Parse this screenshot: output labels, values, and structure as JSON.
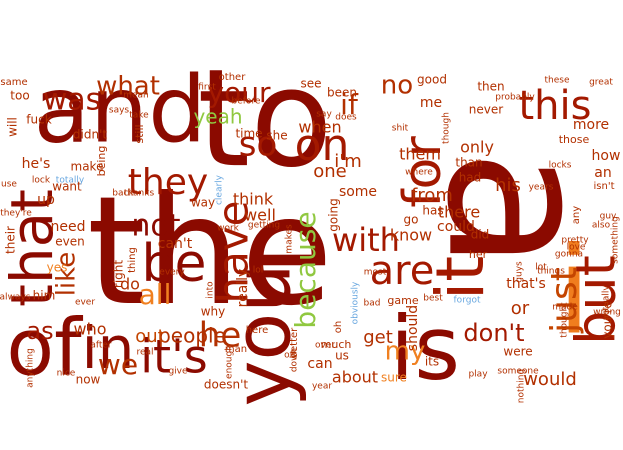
{
  "palette": {
    "background": "#ffffff",
    "c1": "#8b0a00",
    "c2": "#a31900",
    "c3": "#b23000",
    "c4": "#c44500",
    "c5": "#d9621a",
    "c6": "#f08020",
    "c7": "#e89a50",
    "c8": "#90c840",
    "c9": "#6aa8e0"
  },
  "words": [
    {
      "text": "the",
      "size": 150,
      "color": "#8b0a00",
      "rotate": 0
    },
    {
      "text": "a",
      "size": 200,
      "color": "#8b0a00",
      "rotate": 90
    },
    {
      "text": "to",
      "size": 135,
      "color": "#8b0a00",
      "rotate": 0
    },
    {
      "text": "and",
      "size": 92,
      "color": "#8b0a00",
      "rotate": 0
    },
    {
      "text": "i",
      "size": 120,
      "color": "#f07d1e",
      "rotate": 0
    },
    {
      "text": "of",
      "size": 78,
      "color": "#8b0a00",
      "rotate": 0
    },
    {
      "text": "you",
      "size": 78,
      "color": "#8b0a00",
      "rotate": -90
    },
    {
      "text": "is",
      "size": 88,
      "color": "#8b0a00",
      "rotate": 0
    },
    {
      "text": "that",
      "size": 58,
      "color": "#8b0a00",
      "rotate": -90
    },
    {
      "text": "it",
      "size": 66,
      "color": "#a31900",
      "rotate": -90
    },
    {
      "text": "in",
      "size": 58,
      "color": "#8b0a00",
      "rotate": 0
    },
    {
      "text": "but",
      "size": 54,
      "color": "#a31900",
      "rotate": -90
    },
    {
      "text": "for",
      "size": 52,
      "color": "#a31900",
      "rotate": -90
    },
    {
      "text": "have",
      "size": 42,
      "color": "#a31900",
      "rotate": -90
    },
    {
      "text": "be",
      "size": 52,
      "color": "#8b0a00",
      "rotate": 0
    },
    {
      "text": "it's",
      "size": 46,
      "color": "#8b0a00",
      "rotate": 0
    },
    {
      "text": "on",
      "size": 44,
      "color": "#a31900",
      "rotate": 0
    },
    {
      "text": "this",
      "size": 40,
      "color": "#a31900",
      "rotate": 0
    },
    {
      "text": "just",
      "size": 36,
      "color": "#c44500",
      "rotate": -90
    },
    {
      "text": "they",
      "size": 36,
      "color": "#a31900",
      "rotate": 0
    },
    {
      "text": "was",
      "size": 30,
      "color": "#a31900",
      "rotate": 0
    },
    {
      "text": "are",
      "size": 40,
      "color": "#a31900",
      "rotate": 0
    },
    {
      "text": "with",
      "size": 32,
      "color": "#a31900",
      "rotate": 0
    },
    {
      "text": "not",
      "size": 30,
      "color": "#8b0a00",
      "rotate": 0
    },
    {
      "text": "so",
      "size": 34,
      "color": "#a31900",
      "rotate": 0
    },
    {
      "text": "he",
      "size": 34,
      "color": "#b23000",
      "rotate": 0
    },
    {
      "text": "we",
      "size": 28,
      "color": "#b23000",
      "rotate": 0
    },
    {
      "text": "your",
      "size": 28,
      "color": "#a31900",
      "rotate": 0
    },
    {
      "text": "what",
      "size": 26,
      "color": "#b23000",
      "rotate": 0
    },
    {
      "text": "because",
      "size": 28,
      "color": "#90c840",
      "rotate": -90
    },
    {
      "text": "like",
      "size": 26,
      "color": "#b23000",
      "rotate": -90
    },
    {
      "text": "all",
      "size": 28,
      "color": "#f08020",
      "rotate": 0
    },
    {
      "text": "if",
      "size": 28,
      "color": "#b23000",
      "rotate": 0
    },
    {
      "text": "no",
      "size": 26,
      "color": "#b23000",
      "rotate": 0
    },
    {
      "text": "as",
      "size": 24,
      "color": "#a31900",
      "rotate": 0
    },
    {
      "text": "my",
      "size": 26,
      "color": "#f08020",
      "rotate": 0
    },
    {
      "text": "don't",
      "size": 24,
      "color": "#a31900",
      "rotate": 0
    },
    {
      "text": "people",
      "size": 20,
      "color": "#b23000",
      "rotate": 0
    },
    {
      "text": "out",
      "size": 18,
      "color": "#c44500",
      "rotate": 0
    },
    {
      "text": "would",
      "size": 18,
      "color": "#b23000",
      "rotate": 0
    },
    {
      "text": "about",
      "size": 16,
      "color": "#b23000",
      "rotate": 0
    },
    {
      "text": "know",
      "size": 16,
      "color": "#b23000",
      "rotate": 0
    },
    {
      "text": "get",
      "size": 18,
      "color": "#b23000",
      "rotate": 0
    },
    {
      "text": "yeah",
      "size": 20,
      "color": "#90c840",
      "rotate": 0
    },
    {
      "text": "one",
      "size": 18,
      "color": "#b23000",
      "rotate": 0
    },
    {
      "text": "from",
      "size": 18,
      "color": "#b23000",
      "rotate": 0
    },
    {
      "text": "his",
      "size": 18,
      "color": "#b23000",
      "rotate": 0
    },
    {
      "text": "only",
      "size": 16,
      "color": "#b23000",
      "rotate": 0
    },
    {
      "text": "them",
      "size": 16,
      "color": "#b23000",
      "rotate": 0
    },
    {
      "text": "i'm",
      "size": 18,
      "color": "#b23000",
      "rotate": 0
    },
    {
      "text": "when",
      "size": 16,
      "color": "#b23000",
      "rotate": 0
    },
    {
      "text": "think",
      "size": 16,
      "color": "#b23000",
      "rotate": 0
    },
    {
      "text": "well",
      "size": 16,
      "color": "#b23000",
      "rotate": 0
    },
    {
      "text": "who",
      "size": 16,
      "color": "#b23000",
      "rotate": 0
    },
    {
      "text": "do",
      "size": 16,
      "color": "#b23000",
      "rotate": 0
    },
    {
      "text": "or",
      "size": 18,
      "color": "#b23000",
      "rotate": 0
    },
    {
      "text": "there",
      "size": 16,
      "color": "#b23000",
      "rotate": 0
    },
    {
      "text": "more",
      "size": 14,
      "color": "#b23000",
      "rotate": 0
    },
    {
      "text": "how",
      "size": 14,
      "color": "#b23000",
      "rotate": 0
    },
    {
      "text": "an",
      "size": 14,
      "color": "#b23000",
      "rotate": 0
    },
    {
      "text": "could",
      "size": 14,
      "color": "#b23000",
      "rotate": 0
    },
    {
      "text": "should",
      "size": 14,
      "color": "#b23000",
      "rotate": -90
    },
    {
      "text": "that's",
      "size": 14,
      "color": "#b23000",
      "rotate": 0
    },
    {
      "text": "can",
      "size": 14,
      "color": "#b23000",
      "rotate": 0
    },
    {
      "text": "some",
      "size": 14,
      "color": "#b23000",
      "rotate": 0
    },
    {
      "text": "can't",
      "size": 14,
      "color": "#b23000",
      "rotate": 0
    },
    {
      "text": "really",
      "size": 14,
      "color": "#b23000",
      "rotate": -90
    },
    {
      "text": "right",
      "size": 12,
      "color": "#b23000",
      "rotate": -90
    },
    {
      "text": "need",
      "size": 14,
      "color": "#b23000",
      "rotate": 0
    },
    {
      "text": "up",
      "size": 14,
      "color": "#b23000",
      "rotate": 0
    },
    {
      "text": "want",
      "size": 12,
      "color": "#b23000",
      "rotate": 0
    },
    {
      "text": "he's",
      "size": 14,
      "color": "#b23000",
      "rotate": 0
    },
    {
      "text": "make",
      "size": 12,
      "color": "#b23000",
      "rotate": 0
    },
    {
      "text": "even",
      "size": 12,
      "color": "#b23000",
      "rotate": 0
    },
    {
      "text": "yes",
      "size": 12,
      "color": "#f08020",
      "rotate": 0
    },
    {
      "text": "him",
      "size": 12,
      "color": "#b23000",
      "rotate": 0
    },
    {
      "text": "will",
      "size": 12,
      "color": "#b23000",
      "rotate": -90
    },
    {
      "text": "fuck",
      "size": 12,
      "color": "#b23000",
      "rotate": 0
    },
    {
      "text": "didn't",
      "size": 12,
      "color": "#b23000",
      "rotate": 0
    },
    {
      "text": "being",
      "size": 11,
      "color": "#b23000",
      "rotate": -90
    },
    {
      "text": "still",
      "size": 11,
      "color": "#b23000",
      "rotate": -90
    },
    {
      "text": "too",
      "size": 12,
      "color": "#b23000",
      "rotate": 0
    },
    {
      "text": "same",
      "size": 10,
      "color": "#b23000",
      "rotate": 0
    },
    {
      "text": "good",
      "size": 12,
      "color": "#b23000",
      "rotate": 0
    },
    {
      "text": "then",
      "size": 12,
      "color": "#b23000",
      "rotate": 0
    },
    {
      "text": "me",
      "size": 14,
      "color": "#b23000",
      "rotate": 0
    },
    {
      "text": "never",
      "size": 12,
      "color": "#b23000",
      "rotate": 0
    },
    {
      "text": "been",
      "size": 12,
      "color": "#b23000",
      "rotate": 0
    },
    {
      "text": "see",
      "size": 12,
      "color": "#b23000",
      "rotate": 0
    },
    {
      "text": "time",
      "size": 12,
      "color": "#b23000",
      "rotate": 0
    },
    {
      "text": "she",
      "size": 12,
      "color": "#b23000",
      "rotate": 0
    },
    {
      "text": "than",
      "size": 12,
      "color": "#b23000",
      "rotate": 0
    },
    {
      "text": "had",
      "size": 12,
      "color": "#b23000",
      "rotate": 0
    },
    {
      "text": "has",
      "size": 12,
      "color": "#b23000",
      "rotate": 0
    },
    {
      "text": "go",
      "size": 12,
      "color": "#b23000",
      "rotate": 0
    },
    {
      "text": "did",
      "size": 12,
      "color": "#b23000",
      "rotate": 0
    },
    {
      "text": "way",
      "size": 12,
      "color": "#b23000",
      "rotate": 0
    },
    {
      "text": "why",
      "size": 12,
      "color": "#b23000",
      "rotate": 0
    },
    {
      "text": "going",
      "size": 12,
      "color": "#b23000",
      "rotate": -90
    },
    {
      "text": "much",
      "size": 11,
      "color": "#b23000",
      "rotate": 0
    },
    {
      "text": "now",
      "size": 12,
      "color": "#b23000",
      "rotate": 0
    },
    {
      "text": "doesn't",
      "size": 12,
      "color": "#b23000",
      "rotate": 0
    },
    {
      "text": "sure",
      "size": 12,
      "color": "#f08020",
      "rotate": 0
    },
    {
      "text": "its",
      "size": 12,
      "color": "#b23000",
      "rotate": 0
    },
    {
      "text": "were",
      "size": 12,
      "color": "#b23000",
      "rotate": 0
    },
    {
      "text": "here",
      "size": 10,
      "color": "#b23000",
      "rotate": 0
    },
    {
      "text": "better",
      "size": 10,
      "color": "#b23000",
      "rotate": -90
    },
    {
      "text": "game",
      "size": 11,
      "color": "#b23000",
      "rotate": 0
    },
    {
      "text": "her",
      "size": 11,
      "color": "#b23000",
      "rotate": 0
    },
    {
      "text": "any",
      "size": 10,
      "color": "#b23000",
      "rotate": -90
    },
    {
      "text": "their",
      "size": 12,
      "color": "#b23000",
      "rotate": -90
    },
    {
      "text": "those",
      "size": 11,
      "color": "#b23000",
      "rotate": 0
    },
    {
      "text": "other",
      "size": 10,
      "color": "#b23000",
      "rotate": 0
    },
    {
      "text": "isn't",
      "size": 10,
      "color": "#b23000",
      "rotate": 0
    },
    {
      "text": "these",
      "size": 9,
      "color": "#b23000",
      "rotate": 0
    },
    {
      "text": "take",
      "size": 9,
      "color": "#b23000",
      "rotate": 0
    },
    {
      "text": "things",
      "size": 9,
      "color": "#b23000",
      "rotate": 0
    },
    {
      "text": "something",
      "size": 9,
      "color": "#b23000",
      "rotate": -90
    },
    {
      "text": "thought",
      "size": 9,
      "color": "#b23000",
      "rotate": -90
    },
    {
      "text": "guy",
      "size": 9,
      "color": "#b23000",
      "rotate": 0
    },
    {
      "text": "also",
      "size": 9,
      "color": "#b23000",
      "rotate": 0
    },
    {
      "text": "love",
      "size": 9,
      "color": "#b23000",
      "rotate": 0
    },
    {
      "text": "where",
      "size": 9,
      "color": "#b23000",
      "rotate": 0
    },
    {
      "text": "years",
      "size": 9,
      "color": "#b23000",
      "rotate": 0
    },
    {
      "text": "best",
      "size": 9,
      "color": "#b23000",
      "rotate": 0
    },
    {
      "text": "bad",
      "size": 9,
      "color": "#b23000",
      "rotate": 0
    },
    {
      "text": "forgot",
      "size": 9,
      "color": "#6aa8e0",
      "rotate": 0
    },
    {
      "text": "obviously",
      "size": 9,
      "color": "#6aa8e0",
      "rotate": -90
    },
    {
      "text": "clearly",
      "size": 9,
      "color": "#6aa8e0",
      "rotate": -90
    },
    {
      "text": "totally",
      "size": 9,
      "color": "#6aa8e0",
      "rotate": 0
    },
    {
      "text": "every",
      "size": 9,
      "color": "#b23000",
      "rotate": 0
    },
    {
      "text": "thanks",
      "size": 9,
      "color": "#b23000",
      "rotate": 0
    },
    {
      "text": "back",
      "size": 9,
      "color": "#b23000",
      "rotate": 0
    },
    {
      "text": "lock",
      "size": 9,
      "color": "#b23000",
      "rotate": 0
    },
    {
      "text": "use",
      "size": 9,
      "color": "#b23000",
      "rotate": 0
    },
    {
      "text": "they're",
      "size": 9,
      "color": "#b23000",
      "rotate": 0
    },
    {
      "text": "always",
      "size": 9,
      "color": "#b23000",
      "rotate": 0
    },
    {
      "text": "anything",
      "size": 9,
      "color": "#b23000",
      "rotate": -90
    },
    {
      "text": "nice",
      "size": 9,
      "color": "#b23000",
      "rotate": 0
    },
    {
      "text": "after",
      "size": 9,
      "color": "#b23000",
      "rotate": 0
    },
    {
      "text": "real",
      "size": 9,
      "color": "#b23000",
      "rotate": 0
    },
    {
      "text": "man",
      "size": 10,
      "color": "#b23000",
      "rotate": 0
    },
    {
      "text": "over",
      "size": 9,
      "color": "#b23000",
      "rotate": 0
    },
    {
      "text": "down",
      "size": 9,
      "color": "#b23000",
      "rotate": -90
    },
    {
      "text": "year",
      "size": 9,
      "color": "#b23000",
      "rotate": 0
    },
    {
      "text": "play",
      "size": 9,
      "color": "#b23000",
      "rotate": 0
    },
    {
      "text": "someone",
      "size": 9,
      "color": "#b23000",
      "rotate": 0
    },
    {
      "text": "guys",
      "size": 9,
      "color": "#b23000",
      "rotate": -90
    },
    {
      "text": "most",
      "size": 9,
      "color": "#b23000",
      "rotate": 0
    },
    {
      "text": "lol",
      "size": 9,
      "color": "#b23000",
      "rotate": 0
    },
    {
      "text": "work",
      "size": 9,
      "color": "#b23000",
      "rotate": 0
    },
    {
      "text": "into",
      "size": 9,
      "color": "#b23000",
      "rotate": -90
    },
    {
      "text": "ever",
      "size": 9,
      "color": "#b23000",
      "rotate": 0
    },
    {
      "text": "thing",
      "size": 10,
      "color": "#b23000",
      "rotate": -90
    },
    {
      "text": "before",
      "size": 9,
      "color": "#b23000",
      "rotate": 0
    },
    {
      "text": "first",
      "size": 9,
      "color": "#b23000",
      "rotate": 0
    },
    {
      "text": "mean",
      "size": 9,
      "color": "#b23000",
      "rotate": 0
    },
    {
      "text": "says",
      "size": 9,
      "color": "#b23000",
      "rotate": 0
    },
    {
      "text": "say",
      "size": 9,
      "color": "#b23000",
      "rotate": 0
    },
    {
      "text": "does",
      "size": 9,
      "color": "#b23000",
      "rotate": 0
    },
    {
      "text": "shit",
      "size": 9,
      "color": "#b23000",
      "rotate": 0
    },
    {
      "text": "though",
      "size": 9,
      "color": "#b23000",
      "rotate": -90
    },
    {
      "text": "probably",
      "size": 9,
      "color": "#b23000",
      "rotate": 0
    },
    {
      "text": "great",
      "size": 9,
      "color": "#b23000",
      "rotate": 0
    },
    {
      "text": "enough",
      "size": 9,
      "color": "#b23000",
      "rotate": -90
    },
    {
      "text": "makes",
      "size": 9,
      "color": "#b23000",
      "rotate": -90
    },
    {
      "text": "getting",
      "size": 9,
      "color": "#b23000",
      "rotate": 0
    },
    {
      "text": "locks",
      "size": 9,
      "color": "#b23000",
      "rotate": 0
    },
    {
      "text": "made",
      "size": 9,
      "color": "#b23000",
      "rotate": 0
    },
    {
      "text": "actually",
      "size": 9,
      "color": "#b23000",
      "rotate": -90
    },
    {
      "text": "pretty",
      "size": 9,
      "color": "#b23000",
      "rotate": 0
    },
    {
      "text": "gonna",
      "size": 9,
      "color": "#b23000",
      "rotate": 0
    },
    {
      "text": "you're",
      "size": 12,
      "color": "#b23000",
      "rotate": -90
    },
    {
      "text": "off",
      "size": 9,
      "color": "#b23000",
      "rotate": 0
    },
    {
      "text": "give",
      "size": 9,
      "color": "#b23000",
      "rotate": 0
    },
    {
      "text": "nothing",
      "size": 9,
      "color": "#b23000",
      "rotate": -90
    },
    {
      "text": "wrong",
      "size": 9,
      "color": "#b23000",
      "rotate": 0
    },
    {
      "text": "lot",
      "size": 9,
      "color": "#b23000",
      "rotate": 0
    },
    {
      "text": "oh",
      "size": 10,
      "color": "#b23000",
      "rotate": -90
    },
    {
      "text": "us",
      "size": 12,
      "color": "#b23000",
      "rotate": 0
    }
  ]
}
